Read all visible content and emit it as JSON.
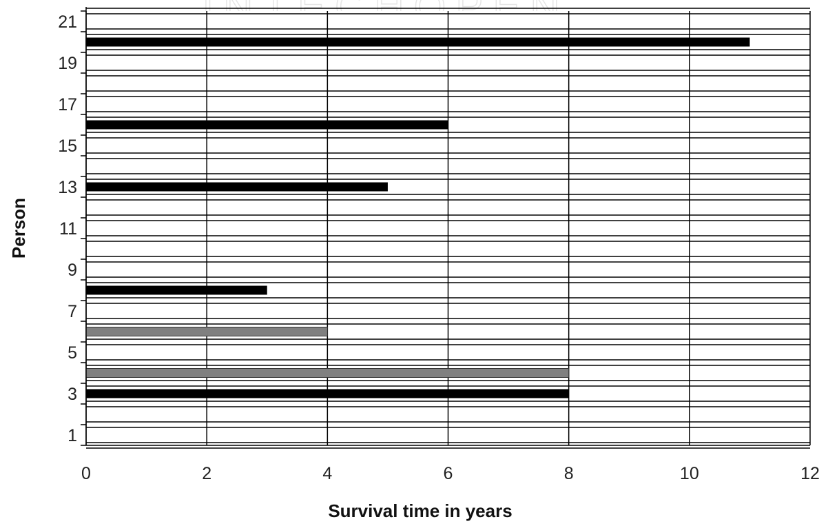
{
  "chart_data": {
    "type": "bar",
    "orientation": "horizontal",
    "title": "",
    "xlabel": "Survival time in years",
    "ylabel": "Person",
    "xlim": [
      0,
      12
    ],
    "ylim": [
      0.5,
      21.5
    ],
    "x_ticks": [
      "0",
      "2",
      "4",
      "6",
      "8",
      "10",
      "12"
    ],
    "y_ticks": [
      "1",
      "3",
      "5",
      "7",
      "9",
      "11",
      "13",
      "15",
      "17",
      "19",
      "21"
    ],
    "grid": true,
    "legend": "none",
    "colors": {
      "dark": "#000000",
      "gray": "#808080"
    },
    "bars": [
      {
        "person": 1,
        "value": 0,
        "color": "dark"
      },
      {
        "person": 2,
        "value": 0,
        "color": "dark"
      },
      {
        "person": 3,
        "value": 8,
        "color": "dark"
      },
      {
        "person": 4,
        "value": 8,
        "color": "gray"
      },
      {
        "person": 5,
        "value": 0,
        "color": "dark"
      },
      {
        "person": 6,
        "value": 4,
        "color": "gray"
      },
      {
        "person": 7,
        "value": 0,
        "color": "dark"
      },
      {
        "person": 8,
        "value": 3,
        "color": "dark"
      },
      {
        "person": 9,
        "value": 0,
        "color": "dark"
      },
      {
        "person": 10,
        "value": 0,
        "color": "dark"
      },
      {
        "person": 11,
        "value": 0,
        "color": "dark"
      },
      {
        "person": 12,
        "value": 0,
        "color": "dark"
      },
      {
        "person": 13,
        "value": 5,
        "color": "dark"
      },
      {
        "person": 14,
        "value": 0,
        "color": "dark"
      },
      {
        "person": 15,
        "value": 0,
        "color": "dark"
      },
      {
        "person": 16,
        "value": 6,
        "color": "dark"
      },
      {
        "person": 17,
        "value": 0,
        "color": "dark"
      },
      {
        "person": 18,
        "value": 0,
        "color": "dark"
      },
      {
        "person": 19,
        "value": 0,
        "color": "dark"
      },
      {
        "person": 20,
        "value": 11,
        "color": "dark"
      },
      {
        "person": 21,
        "value": 0,
        "color": "dark"
      }
    ]
  }
}
